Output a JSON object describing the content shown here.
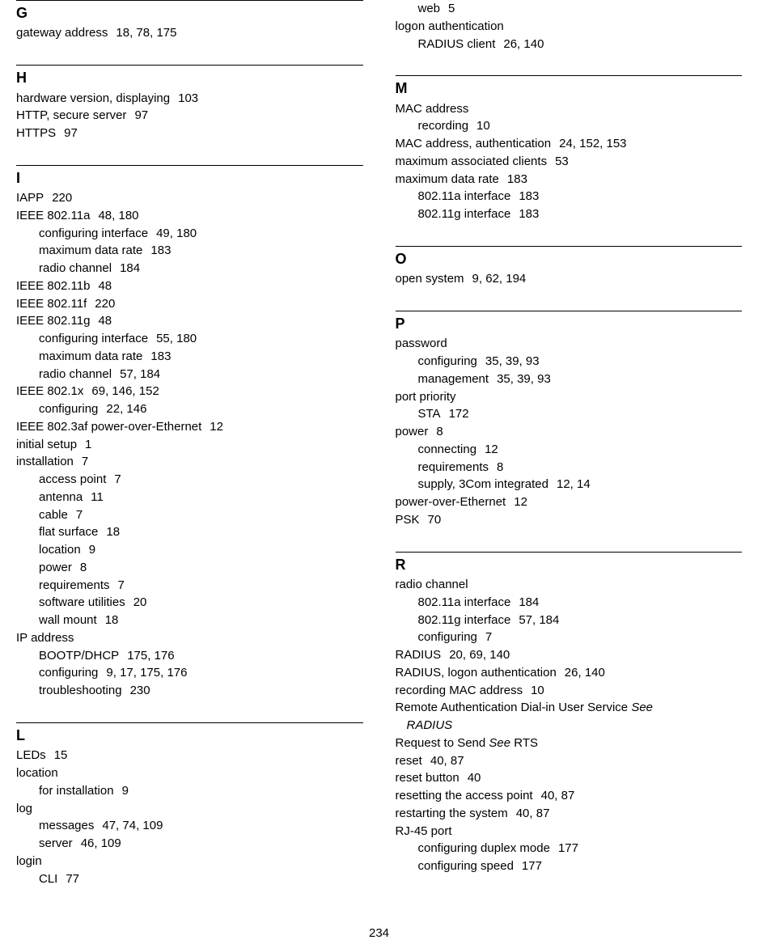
{
  "pageNumber": "234",
  "columns": [
    {
      "sections": [
        {
          "letter": "G",
          "entries": [
            {
              "level": 0,
              "term": "gateway address",
              "pages": "18, 78, 175"
            }
          ]
        },
        {
          "letter": "H",
          "entries": [
            {
              "level": 0,
              "term": "hardware version, displaying",
              "pages": "103"
            },
            {
              "level": 0,
              "term": "HTTP, secure server",
              "pages": "97"
            },
            {
              "level": 0,
              "term": "HTTPS",
              "pages": "97"
            }
          ]
        },
        {
          "letter": "I",
          "entries": [
            {
              "level": 0,
              "term": "IAPP",
              "pages": "220"
            },
            {
              "level": 0,
              "term": "IEEE 802.11a",
              "pages": "48, 180"
            },
            {
              "level": 1,
              "term": "configuring interface",
              "pages": "49, 180"
            },
            {
              "level": 1,
              "term": "maximum data rate",
              "pages": "183"
            },
            {
              "level": 1,
              "term": "radio channel",
              "pages": "184"
            },
            {
              "level": 0,
              "term": "IEEE 802.11b",
              "pages": "48"
            },
            {
              "level": 0,
              "term": "IEEE 802.11f",
              "pages": "220"
            },
            {
              "level": 0,
              "term": "IEEE 802.11g",
              "pages": "48"
            },
            {
              "level": 1,
              "term": "configuring interface",
              "pages": "55, 180"
            },
            {
              "level": 1,
              "term": "maximum data rate",
              "pages": "183"
            },
            {
              "level": 1,
              "term": "radio channel",
              "pages": "57, 184"
            },
            {
              "level": 0,
              "term": "IEEE 802.1x",
              "pages": "69, 146, 152"
            },
            {
              "level": 1,
              "term": "configuring",
              "pages": "22, 146"
            },
            {
              "level": 0,
              "term": "IEEE 802.3af power-over-Ethernet",
              "pages": "12"
            },
            {
              "level": 0,
              "term": "initial setup",
              "pages": "1"
            },
            {
              "level": 0,
              "term": "installation",
              "pages": "7"
            },
            {
              "level": 1,
              "term": "access point",
              "pages": "7"
            },
            {
              "level": 1,
              "term": "antenna",
              "pages": "11"
            },
            {
              "level": 1,
              "term": "cable",
              "pages": "7"
            },
            {
              "level": 1,
              "term": "flat surface",
              "pages": "18"
            },
            {
              "level": 1,
              "term": "location",
              "pages": "9"
            },
            {
              "level": 1,
              "term": "power",
              "pages": "8"
            },
            {
              "level": 1,
              "term": "requirements",
              "pages": "7"
            },
            {
              "level": 1,
              "term": "software utilities",
              "pages": "20"
            },
            {
              "level": 1,
              "term": "wall mount",
              "pages": "18"
            },
            {
              "level": 0,
              "term": "IP address",
              "pages": ""
            },
            {
              "level": 1,
              "term": "BOOTP/DHCP",
              "pages": "175, 176"
            },
            {
              "level": 1,
              "term": "configuring",
              "pages": "9, 17, 175, 176"
            },
            {
              "level": 1,
              "term": "troubleshooting",
              "pages": "230"
            }
          ]
        },
        {
          "letter": "L",
          "entries": [
            {
              "level": 0,
              "term": "LEDs",
              "pages": "15"
            },
            {
              "level": 0,
              "term": "location",
              "pages": ""
            },
            {
              "level": 1,
              "term": "for installation",
              "pages": "9"
            },
            {
              "level": 0,
              "term": "log",
              "pages": ""
            },
            {
              "level": 1,
              "term": "messages",
              "pages": "47, 74, 109"
            },
            {
              "level": 1,
              "term": "server",
              "pages": "46, 109"
            },
            {
              "level": 0,
              "term": "login",
              "pages": ""
            },
            {
              "level": 1,
              "term": "CLI",
              "pages": "77"
            }
          ]
        }
      ]
    },
    {
      "preEntries": [
        {
          "level": 1,
          "term": "web",
          "pages": "5"
        },
        {
          "level": 0,
          "term": "logon authentication",
          "pages": ""
        },
        {
          "level": 1,
          "term": "RADIUS client",
          "pages": "26, 140"
        }
      ],
      "sections": [
        {
          "letter": "M",
          "entries": [
            {
              "level": 0,
              "term": "MAC address",
              "pages": ""
            },
            {
              "level": 1,
              "term": "recording",
              "pages": "10"
            },
            {
              "level": 0,
              "term": "MAC address, authentication",
              "pages": "24, 152, 153"
            },
            {
              "level": 0,
              "term": "maximum associated clients",
              "pages": "53"
            },
            {
              "level": 0,
              "term": "maximum data rate",
              "pages": "183"
            },
            {
              "level": 1,
              "term": "802.11a interface",
              "pages": "183"
            },
            {
              "level": 1,
              "term": "802.11g interface",
              "pages": "183"
            }
          ]
        },
        {
          "letter": "O",
          "entries": [
            {
              "level": 0,
              "term": "open system",
              "pages": "9, 62, 194"
            }
          ]
        },
        {
          "letter": "P",
          "entries": [
            {
              "level": 0,
              "term": "password",
              "pages": ""
            },
            {
              "level": 1,
              "term": "configuring",
              "pages": "35, 39, 93"
            },
            {
              "level": 1,
              "term": "management",
              "pages": "35, 39, 93"
            },
            {
              "level": 0,
              "term": "port priority",
              "pages": ""
            },
            {
              "level": 1,
              "term": "STA",
              "pages": "172"
            },
            {
              "level": 0,
              "term": "power",
              "pages": "8"
            },
            {
              "level": 1,
              "term": "connecting",
              "pages": "12"
            },
            {
              "level": 1,
              "term": "requirements",
              "pages": "8"
            },
            {
              "level": 1,
              "term": "supply, 3Com integrated",
              "pages": "12, 14"
            },
            {
              "level": 0,
              "term": "power-over-Ethernet",
              "pages": "12"
            },
            {
              "level": 0,
              "term": "PSK",
              "pages": "70"
            }
          ]
        },
        {
          "letter": "R",
          "entries": [
            {
              "level": 0,
              "term": "radio channel",
              "pages": ""
            },
            {
              "level": 1,
              "term": "802.11a interface",
              "pages": "184"
            },
            {
              "level": 1,
              "term": "802.11g interface",
              "pages": "57, 184"
            },
            {
              "level": 1,
              "term": "configuring",
              "pages": "7"
            },
            {
              "level": 0,
              "term": "RADIUS",
              "pages": "20, 69, 140"
            },
            {
              "level": 0,
              "term": "RADIUS, logon authentication",
              "pages": "26, 140"
            },
            {
              "level": 0,
              "term": "recording MAC address",
              "pages": "10"
            },
            {
              "level": 0,
              "term": "Remote Authentication Dial-in User Service",
              "see": "See",
              "seeTarget": "RADIUS"
            },
            {
              "level": 0,
              "term": "Request to Send",
              "see": "See",
              "seeTarget": "RTS",
              "inline": true
            },
            {
              "level": 0,
              "term": "reset",
              "pages": "40, 87"
            },
            {
              "level": 0,
              "term": "reset button",
              "pages": "40"
            },
            {
              "level": 0,
              "term": "resetting the access point",
              "pages": "40, 87"
            },
            {
              "level": 0,
              "term": "restarting the system",
              "pages": "40, 87"
            },
            {
              "level": 0,
              "term": "RJ-45 port",
              "pages": ""
            },
            {
              "level": 1,
              "term": "configuring duplex mode",
              "pages": "177"
            },
            {
              "level": 1,
              "term": "configuring speed",
              "pages": "177"
            }
          ]
        }
      ]
    }
  ]
}
